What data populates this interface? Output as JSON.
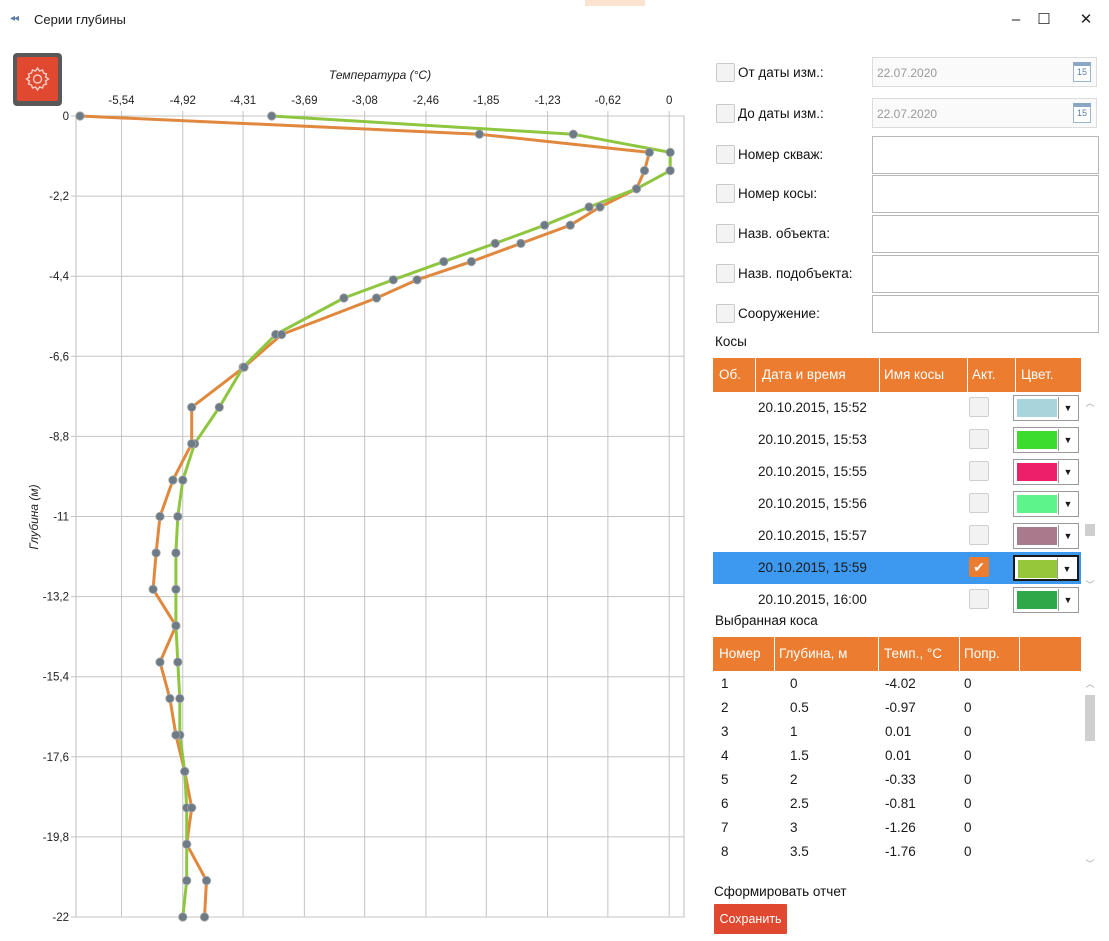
{
  "window": {
    "title": "Серии глубины",
    "minimize": "–",
    "maximize": "☐",
    "close": "✕"
  },
  "chart_data": {
    "type": "line",
    "title": "Температура (°C)",
    "xlabel": "Температура (°C)",
    "ylabel": "Глубина (м)",
    "xlim": [
      -6.0,
      0.15
    ],
    "ylim": [
      -22.0,
      0.0
    ],
    "x_ticks": [
      "-5,54",
      "-4,92",
      "-4,31",
      "-3,69",
      "-3,08",
      "-2,46",
      "-1,85",
      "-1,23",
      "-0,62",
      "0"
    ],
    "x_tick_values": [
      -5.54,
      -4.92,
      -4.31,
      -3.69,
      -3.08,
      -2.46,
      -1.85,
      -1.23,
      -0.62,
      0
    ],
    "y_ticks": [
      "0",
      "-2,2",
      "-4,4",
      "-6,6",
      "-8,8",
      "-11",
      "-13,2",
      "-15,4",
      "-17,6",
      "-19,8",
      "-22"
    ],
    "y_tick_values": [
      0,
      -2.2,
      -4.4,
      -6.6,
      -8.8,
      -11,
      -13.2,
      -15.4,
      -17.6,
      -19.8,
      -22
    ],
    "legend": "none",
    "grid": true,
    "series": [
      {
        "color": "#8ec63f",
        "points": [
          [
            -4.02,
            0
          ],
          [
            -0.97,
            -0.5
          ],
          [
            0.01,
            -1
          ],
          [
            0.01,
            -1.5
          ],
          [
            -0.33,
            -2
          ],
          [
            -0.81,
            -2.5
          ],
          [
            -1.26,
            -3
          ],
          [
            -1.76,
            -3.5
          ],
          [
            -2.28,
            -4
          ],
          [
            -2.79,
            -4.5
          ],
          [
            -3.29,
            -5
          ],
          [
            -3.98,
            -6
          ],
          [
            -4.31,
            -6.9
          ],
          [
            -4.55,
            -8
          ],
          [
            -4.8,
            -9
          ],
          [
            -4.92,
            -10
          ],
          [
            -4.97,
            -11
          ],
          [
            -4.99,
            -12
          ],
          [
            -4.99,
            -13
          ],
          [
            -4.99,
            -14
          ],
          [
            -4.97,
            -15
          ],
          [
            -4.95,
            -16
          ],
          [
            -4.95,
            -17
          ],
          [
            -4.9,
            -18
          ],
          [
            -4.88,
            -19
          ],
          [
            -4.88,
            -20
          ],
          [
            -4.88,
            -21
          ],
          [
            -4.92,
            -22
          ]
        ]
      },
      {
        "color": "#e0883e",
        "points": [
          [
            -5.96,
            0
          ],
          [
            -1.92,
            -0.5
          ],
          [
            -0.2,
            -1
          ],
          [
            -0.25,
            -1.5
          ],
          [
            -0.33,
            -2
          ],
          [
            -0.7,
            -2.5
          ],
          [
            -1,
            -3
          ],
          [
            -1.5,
            -3.5
          ],
          [
            -2,
            -4
          ],
          [
            -2.55,
            -4.5
          ],
          [
            -2.96,
            -5
          ],
          [
            -3.92,
            -6
          ],
          [
            -4.3,
            -6.9
          ],
          [
            -4.83,
            -8
          ],
          [
            -4.83,
            -9
          ],
          [
            -5.02,
            -10
          ],
          [
            -5.15,
            -11
          ],
          [
            -5.19,
            -12
          ],
          [
            -5.22,
            -13
          ],
          [
            -4.99,
            -14
          ],
          [
            -5.15,
            -15
          ],
          [
            -5.05,
            -16
          ],
          [
            -4.99,
            -17
          ],
          [
            -4.9,
            -18
          ],
          [
            -4.83,
            -19
          ],
          [
            -4.88,
            -20
          ],
          [
            -4.68,
            -21
          ],
          [
            -4.7,
            -22
          ]
        ]
      }
    ]
  },
  "filters": [
    {
      "label": "От даты изм.:",
      "type": "date",
      "value": "22.07.2020"
    },
    {
      "label": "До даты изм.:",
      "type": "date",
      "value": "22.07.2020"
    },
    {
      "label": "Номер скваж:",
      "type": "text",
      "value": ""
    },
    {
      "label": "Номер косы:",
      "type": "text",
      "value": ""
    },
    {
      "label": "Назв. объекта:",
      "type": "text",
      "value": ""
    },
    {
      "label": "Назв. подобъекта:",
      "type": "text",
      "value": ""
    },
    {
      "label": "Сооружение:",
      "type": "text",
      "value": ""
    }
  ],
  "calendar_day": "15",
  "kosy": {
    "title": "Косы",
    "columns": [
      "Об.",
      "Дата и время",
      "Имя косы",
      "Акт.",
      "Цвет."
    ],
    "rows": [
      {
        "datetime": "20.10.2015, 15:52",
        "active": false,
        "color": "#a8d4dc",
        "selected": false
      },
      {
        "datetime": "20.10.2015, 15:53",
        "active": false,
        "color": "#3bdc2e",
        "selected": false
      },
      {
        "datetime": "20.10.2015, 15:55",
        "active": false,
        "color": "#ee1f6a",
        "selected": false
      },
      {
        "datetime": "20.10.2015, 15:56",
        "active": false,
        "color": "#5cf58b",
        "selected": false
      },
      {
        "datetime": "20.10.2015, 15:57",
        "active": false,
        "color": "#a87a8c",
        "selected": false
      },
      {
        "datetime": "20.10.2015, 15:59",
        "active": true,
        "color": "#94c83a",
        "selected": true
      },
      {
        "datetime": "20.10.2015, 16:00",
        "active": false,
        "color": "#2fa84a",
        "selected": false
      }
    ]
  },
  "selected_kosa": {
    "title": "Выбранная коса",
    "columns": [
      "Номер",
      "Глубина, м",
      "Темп., °C",
      "Попр."
    ],
    "rows": [
      [
        "1",
        "0",
        "-4.02",
        "0"
      ],
      [
        "2",
        "0.5",
        "-0.97",
        "0"
      ],
      [
        "3",
        "1",
        "0.01",
        "0"
      ],
      [
        "4",
        "1.5",
        "0.01",
        "0"
      ],
      [
        "5",
        "2",
        "-0.33",
        "0"
      ],
      [
        "6",
        "2.5",
        "-0.81",
        "0"
      ],
      [
        "7",
        "3",
        "-1.26",
        "0"
      ],
      [
        "8",
        "3.5",
        "-1.76",
        "0"
      ]
    ]
  },
  "report": {
    "label": "Сформировать отчет",
    "save_label": "Сохранить"
  }
}
